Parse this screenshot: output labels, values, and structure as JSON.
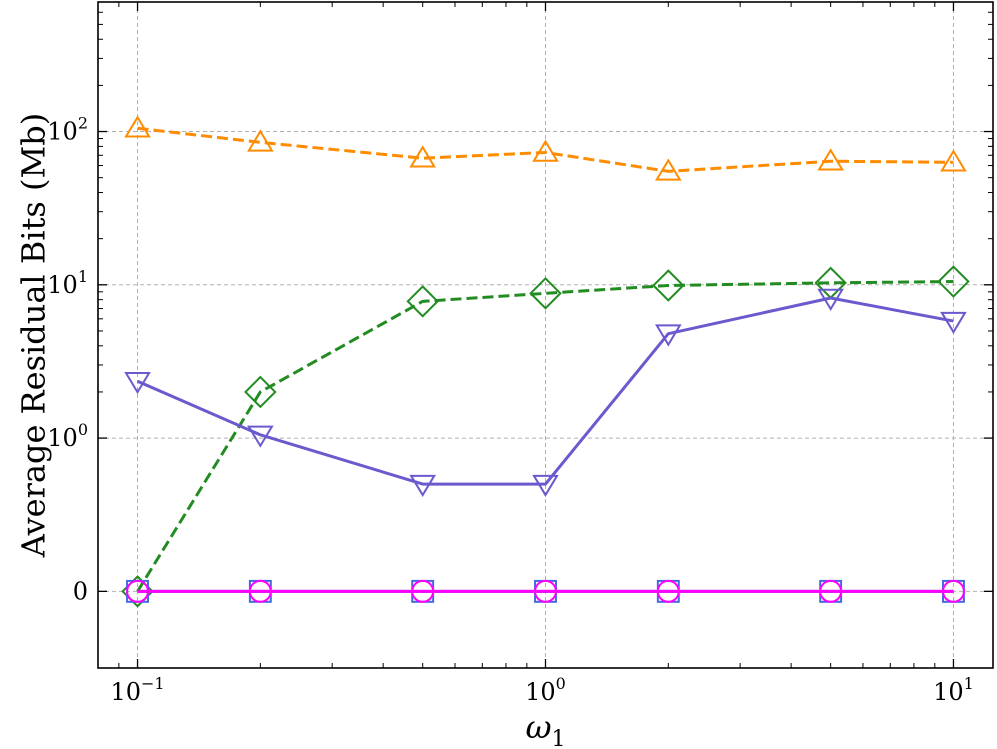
{
  "chart_data": {
    "type": "line",
    "title": "",
    "xlabel": "ω",
    "xlabel_sub": "1",
    "ylabel": "Average Residual Bits (Mb)",
    "x_scale": "log",
    "y_scale": "symlog",
    "xlim": [
      0.08,
      12.5
    ],
    "ylim": [
      -0.5,
      700
    ],
    "grid": true,
    "x": [
      0.1,
      0.2,
      0.5,
      1,
      2,
      5,
      10
    ],
    "x_ticks": [
      {
        "value": 0.1,
        "base": "10",
        "exp": "−1"
      },
      {
        "value": 1,
        "base": "10",
        "exp": "0"
      },
      {
        "value": 10,
        "base": "10",
        "exp": "1"
      }
    ],
    "y_ticks": [
      {
        "value": 0,
        "base": "0",
        "exp": ""
      },
      {
        "value": 1,
        "base": "10",
        "exp": "0"
      },
      {
        "value": 10,
        "base": "10",
        "exp": "1"
      },
      {
        "value": 100,
        "base": "10",
        "exp": "2"
      }
    ],
    "series": [
      {
        "values": [
          105,
          85,
          67,
          73,
          55,
          64,
          63
        ],
        "color": "#ff8c00",
        "dash": true,
        "marker": "triangle-up"
      },
      {
        "values": [
          0,
          2.0,
          7.8,
          8.8,
          9.9,
          10.3,
          10.5
        ],
        "color": "#228b22",
        "dash": true,
        "marker": "diamond"
      },
      {
        "values": [
          2.35,
          1.05,
          0.7,
          0.7,
          4.8,
          8.2,
          5.8
        ],
        "color": "#6a5acd",
        "dash": false,
        "marker": "triangle-down"
      },
      {
        "values": [
          0,
          0,
          0,
          0,
          0,
          0,
          0
        ],
        "color": "#4169e1",
        "dash": false,
        "marker": "square"
      },
      {
        "values": [
          0,
          0,
          0,
          0,
          0,
          0,
          0
        ],
        "color": "#ff00ff",
        "dash": false,
        "marker": "circle"
      }
    ]
  }
}
